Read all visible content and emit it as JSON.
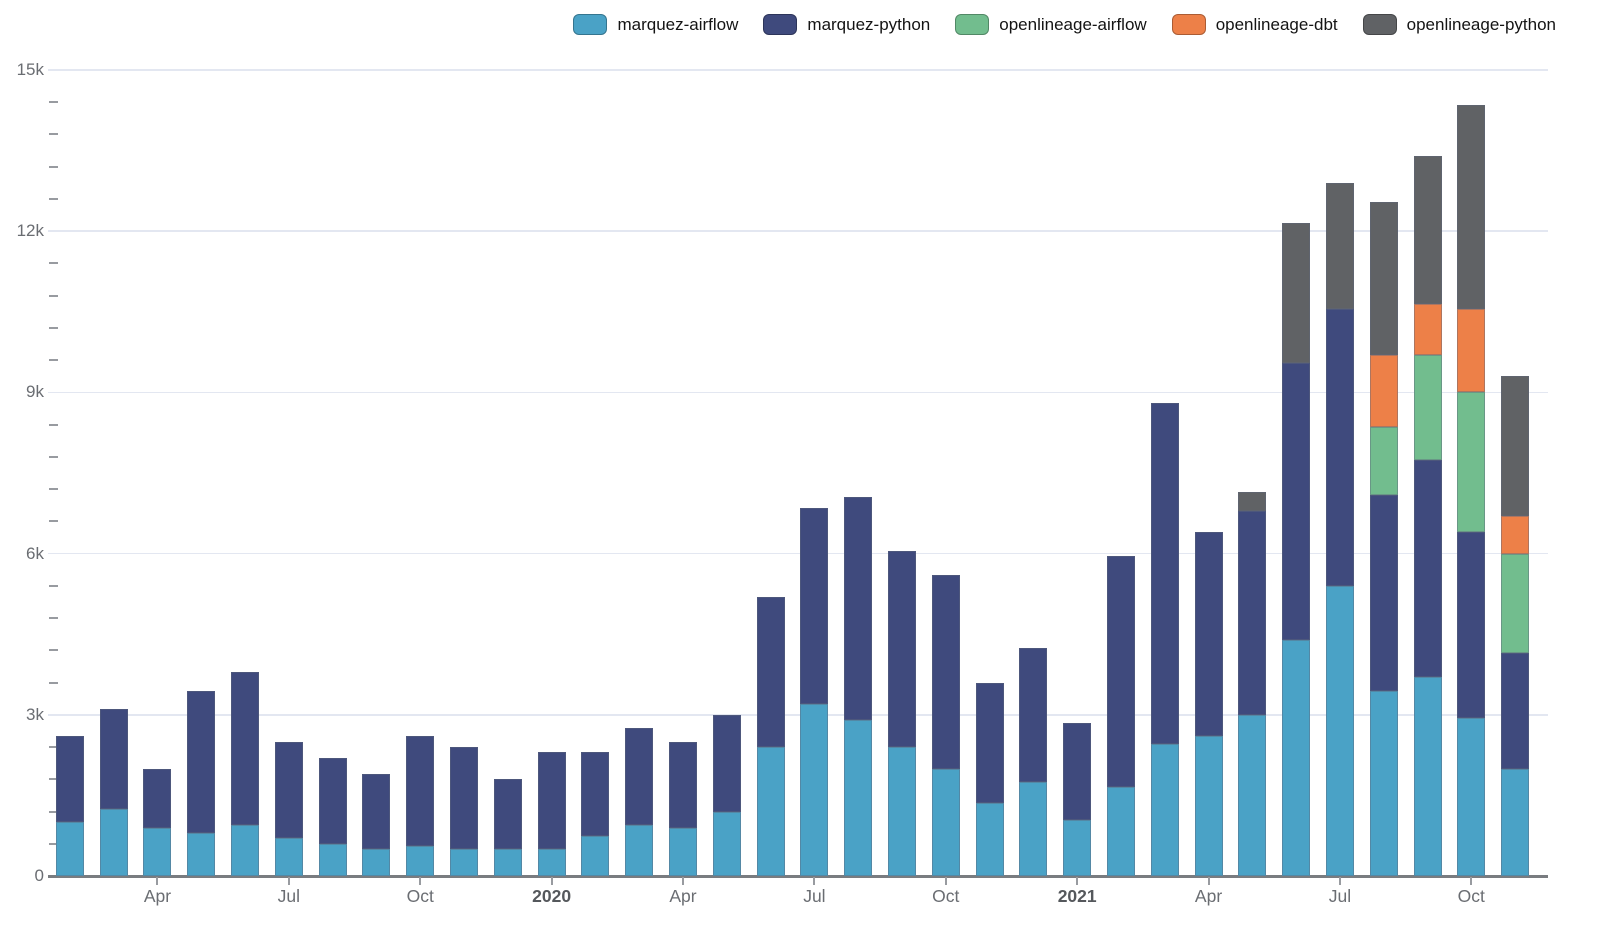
{
  "colors": {
    "background": "#FFFFFF",
    "gridline": "#E3E7F1",
    "axis_line": "#797C80",
    "tick": "#989BA0",
    "axis_label": "#6A6D72",
    "year_label": "#55585C",
    "legend_text": "#141414"
  },
  "chart_data": {
    "type": "bar",
    "stacked": true,
    "title": "",
    "xlabel": "",
    "ylabel": "",
    "ylim": [
      0,
      15000
    ],
    "grid": "horizontal-major-gridlines",
    "legend_position": "top-right",
    "y_ticks": [
      {
        "label": "0",
        "value": 0
      },
      {
        "label": "3k",
        "value": 3000
      },
      {
        "label": "6k",
        "value": 6000
      },
      {
        "label": "9k",
        "value": 9000
      },
      {
        "label": "12k",
        "value": 12000
      },
      {
        "label": "15k",
        "value": 15000
      }
    ],
    "y_minor_tick_interval": 600,
    "categories": [
      "Feb 2019",
      "Mar 2019",
      "Apr 2019",
      "May 2019",
      "Jun 2019",
      "Jul 2019",
      "Aug 2019",
      "Sep 2019",
      "Oct 2019",
      "Nov 2019",
      "Dec 2019",
      "Jan 2020",
      "Feb 2020",
      "Mar 2020",
      "Apr 2020",
      "May 2020",
      "Jun 2020",
      "Jul 2020",
      "Aug 2020",
      "Sep 2020",
      "Oct 2020",
      "Nov 2020",
      "Dec 2020",
      "Jan 2021",
      "Feb 2021",
      "Mar 2021",
      "Apr 2021",
      "May 2021",
      "Jun 2021",
      "Jul 2021",
      "Aug 2021",
      "Sep 2021",
      "Oct 2021",
      "Nov 2021"
    ],
    "x_ticks": [
      {
        "index": 2,
        "label": "Apr",
        "bold": false
      },
      {
        "index": 5,
        "label": "Jul",
        "bold": false
      },
      {
        "index": 8,
        "label": "Oct",
        "bold": false
      },
      {
        "index": 11,
        "label": "2020",
        "bold": true
      },
      {
        "index": 14,
        "label": "Apr",
        "bold": false
      },
      {
        "index": 17,
        "label": "Jul",
        "bold": false
      },
      {
        "index": 20,
        "label": "Oct",
        "bold": false
      },
      {
        "index": 23,
        "label": "2021",
        "bold": true
      },
      {
        "index": 26,
        "label": "Apr",
        "bold": false
      },
      {
        "index": 29,
        "label": "Jul",
        "bold": false
      },
      {
        "index": 32,
        "label": "Oct",
        "bold": false
      }
    ],
    "series": [
      {
        "name": "marquez-airflow",
        "color": "#4AA2C6",
        "values": [
          1000,
          1250,
          900,
          800,
          950,
          700,
          600,
          500,
          550,
          500,
          500,
          500,
          750,
          950,
          900,
          1200,
          2400,
          3200,
          2900,
          2400,
          2000,
          1350,
          1750,
          1050,
          1650,
          2450,
          2600,
          3000,
          4400,
          5400,
          3450,
          3700,
          2950,
          2000
        ]
      },
      {
        "name": "marquez-python",
        "color": "#3F4A7D",
        "values": [
          1600,
          1850,
          1100,
          2650,
          2850,
          1800,
          1600,
          1400,
          2050,
          1900,
          1300,
          1800,
          1550,
          1800,
          1600,
          1800,
          2800,
          3650,
          4150,
          3650,
          3600,
          2250,
          2500,
          1800,
          4300,
          6350,
          3800,
          3800,
          5150,
          5150,
          3650,
          4050,
          3450,
          2150
        ]
      },
      {
        "name": "openlineage-airflow",
        "color": "#72BD8E",
        "values": [
          0,
          0,
          0,
          0,
          0,
          0,
          0,
          0,
          0,
          0,
          0,
          0,
          0,
          0,
          0,
          0,
          0,
          0,
          0,
          0,
          0,
          0,
          0,
          0,
          0,
          0,
          0,
          0,
          0,
          0,
          1250,
          1950,
          2600,
          1850
        ]
      },
      {
        "name": "openlineage-dbt",
        "color": "#ED8048",
        "values": [
          0,
          0,
          0,
          0,
          0,
          0,
          0,
          0,
          0,
          0,
          0,
          0,
          0,
          0,
          0,
          0,
          0,
          0,
          0,
          0,
          0,
          0,
          0,
          0,
          0,
          0,
          0,
          0,
          0,
          0,
          1350,
          950,
          1550,
          700
        ]
      },
      {
        "name": "openlineage-python",
        "color": "#606265",
        "values": [
          0,
          0,
          0,
          0,
          0,
          0,
          0,
          0,
          0,
          0,
          0,
          0,
          0,
          0,
          0,
          0,
          0,
          0,
          0,
          0,
          0,
          0,
          0,
          0,
          0,
          0,
          0,
          350,
          2600,
          2350,
          2850,
          2750,
          3800,
          2600
        ]
      }
    ]
  }
}
